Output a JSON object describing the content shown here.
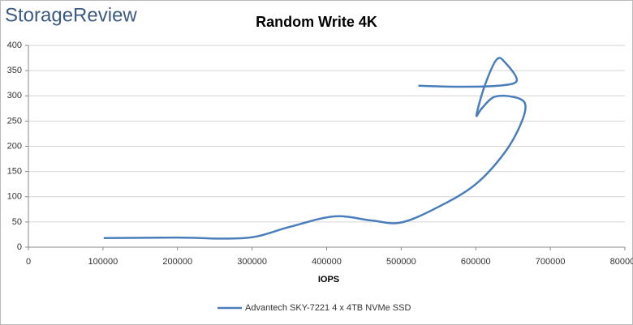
{
  "brand": "StorageReview",
  "chart_data": {
    "type": "line",
    "title": "Random Write 4K",
    "x_label": "IOPS",
    "x": [
      101000,
      200000,
      265000,
      305000,
      350000,
      410000,
      460000,
      500000,
      550000,
      600000,
      640000,
      662000,
      666000,
      650000,
      625000,
      608000,
      601000,
      612000,
      628000,
      640000,
      655000,
      630000,
      580000,
      523000
    ],
    "series": [
      {
        "name": "Advantech SKY-7221 4 x 4TB NVMe SSD",
        "color": "#4a7ebb",
        "values": [
          18,
          19,
          17,
          21,
          40,
          61,
          53,
          49,
          80,
          125,
          190,
          250,
          285,
          298,
          298,
          275,
          262,
          320,
          372,
          365,
          330,
          320,
          318,
          320
        ]
      }
    ],
    "xlim": [
      0,
      800000
    ],
    "xticks": [
      0,
      100000,
      200000,
      300000,
      400000,
      500000,
      600000,
      700000,
      800000
    ],
    "ylim": [
      0,
      400
    ],
    "yticks": [
      0,
      50,
      100,
      150,
      200,
      250,
      300,
      350,
      400
    ],
    "grid": true,
    "legend": "bottom"
  }
}
